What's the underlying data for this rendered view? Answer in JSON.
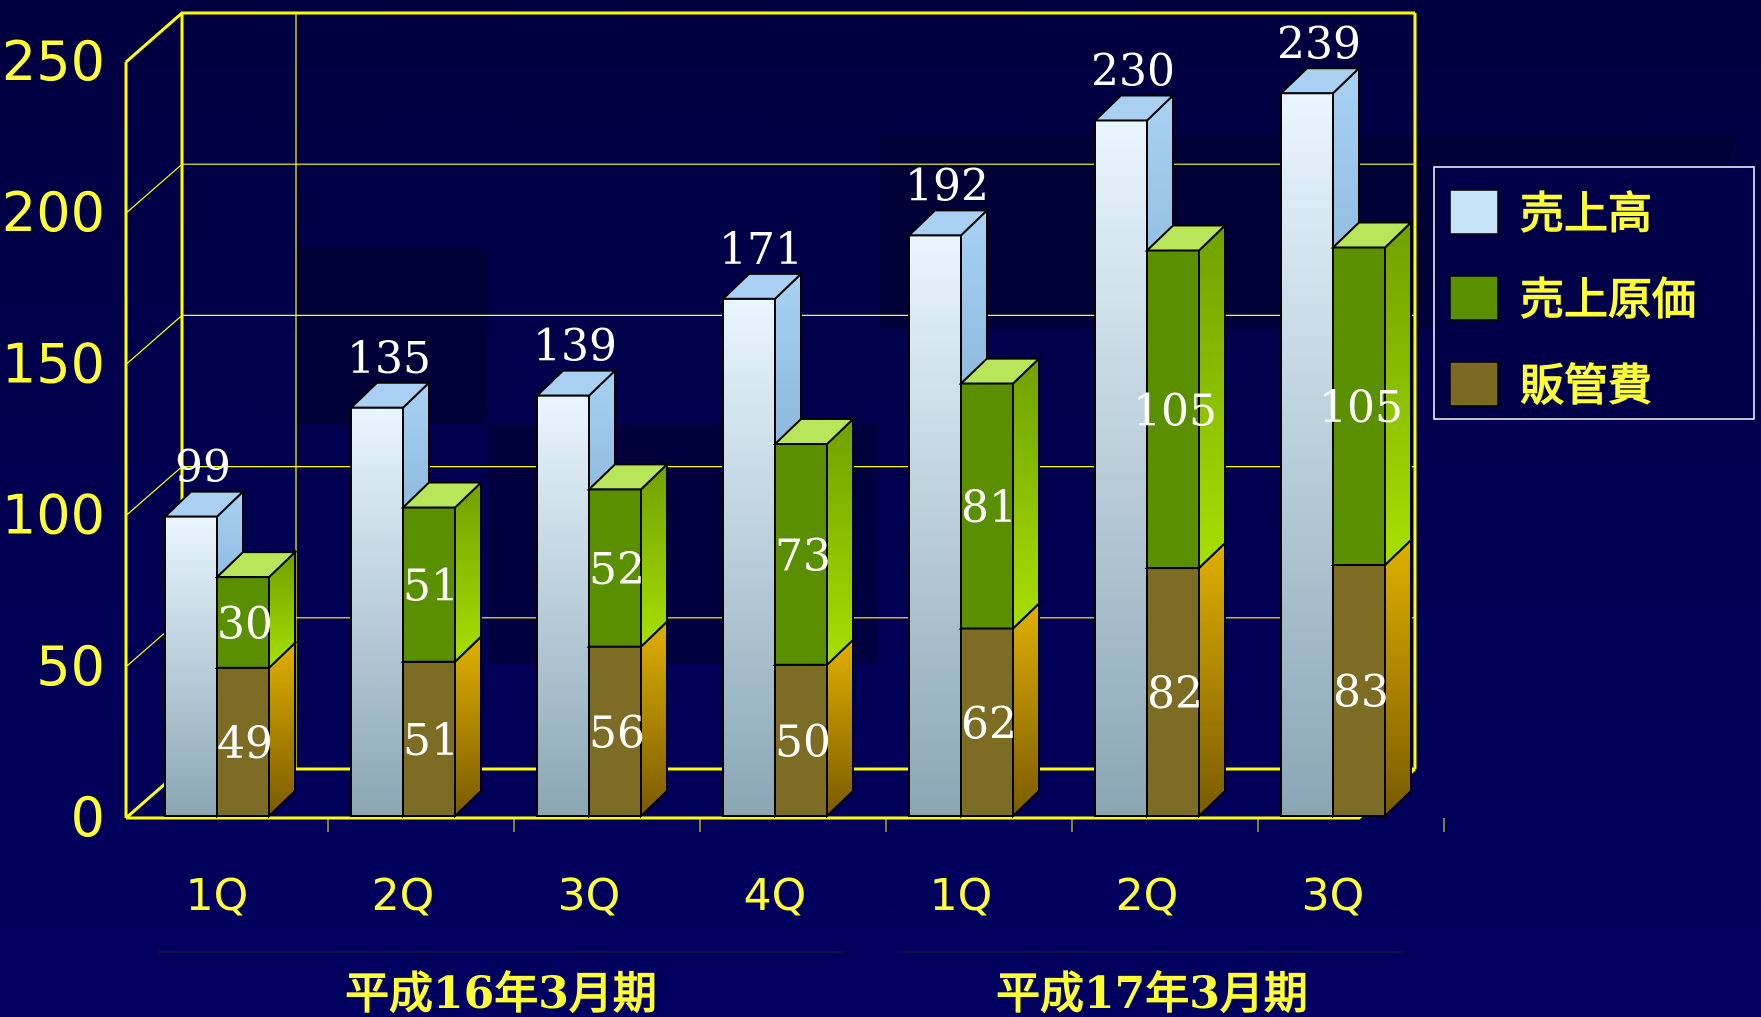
{
  "chart_data": {
    "type": "bar",
    "variant": "3d-clustered-stacked",
    "title": "",
    "xlabel": "",
    "ylabel": "",
    "ylim": [
      0,
      250
    ],
    "yticks": [
      "0",
      "50",
      "100",
      "150",
      "200",
      "250"
    ],
    "grid": true,
    "legend_position": "right",
    "categories": [
      "1Q",
      "2Q",
      "3Q",
      "4Q",
      "1Q",
      "2Q",
      "3Q"
    ],
    "groups": [
      {
        "label": "平成16年3月期",
        "from": 0,
        "to": 3
      },
      {
        "label": "平成17年3月期",
        "from": 4,
        "to": 6
      }
    ],
    "series": [
      {
        "name": "売上高",
        "stack": "sales",
        "color": "#c6e4f7",
        "values": [
          99,
          135,
          139,
          171,
          192,
          230,
          239
        ]
      },
      {
        "name": "販管費",
        "stack": "cost",
        "color": "#7a6a22",
        "values": [
          49,
          51,
          56,
          50,
          62,
          82,
          83
        ]
      },
      {
        "name": "売上原価",
        "stack": "cost",
        "color": "#5a9000",
        "values": [
          30,
          51,
          52,
          73,
          81,
          105,
          105
        ]
      }
    ],
    "legend": [
      "売上高",
      "売上原価",
      "販管費"
    ]
  }
}
